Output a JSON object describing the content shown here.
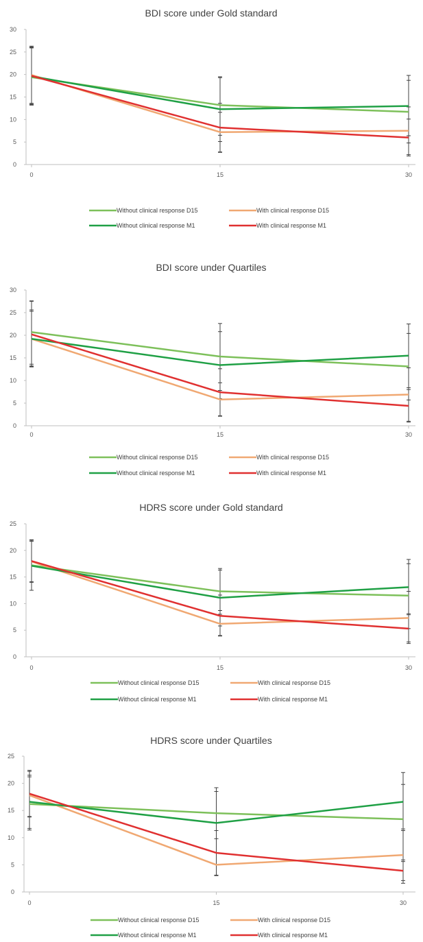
{
  "colors": {
    "without_d15": "#7dc05a",
    "with_d15": "#f0a872",
    "without_m1": "#1fa045",
    "with_m1": "#e03030",
    "axis": "#bfbfbf",
    "error_bar": "#404040"
  },
  "chart_data": [
    {
      "type": "line",
      "title": "BDI score under Gold standard",
      "x": [
        0,
        15,
        30
      ],
      "x_ticks": [
        "0",
        "15",
        "30"
      ],
      "y_ticks": [
        "0",
        "5",
        "10",
        "15",
        "20",
        "25",
        "30"
      ],
      "ylim": [
        0,
        30
      ],
      "legend_position": "bottom",
      "grid": false,
      "series": [
        {
          "name": "Without clinical response D15",
          "color_key": "without_d15",
          "values": [
            19.4,
            13.2,
            11.7
          ],
          "err_low": [
            13.4,
            6.5,
            4.8
          ],
          "err_high": [
            25.9,
            19.3,
            18.7
          ]
        },
        {
          "name": "With clinical response D15",
          "color_key": "with_d15",
          "values": [
            19.9,
            7.2,
            7.5
          ],
          "err_low": [
            13.6,
            2.8,
            2.2
          ],
          "err_high": [
            26.3,
            11.6,
            12.8
          ]
        },
        {
          "name": "Without clinical response M1",
          "color_key": "without_m1",
          "values": [
            19.6,
            12.3,
            13.0
          ],
          "err_low": [
            13.2,
            5.1,
            6.4
          ],
          "err_high": [
            26.0,
            19.5,
            19.8
          ]
        },
        {
          "name": "With clinical response M1",
          "color_key": "with_m1",
          "values": [
            19.7,
            8.2,
            6.0
          ],
          "err_low": [
            13.3,
            2.7,
            1.9
          ],
          "err_high": [
            26.1,
            13.6,
            10.1
          ]
        }
      ]
    },
    {
      "type": "line",
      "title": "BDI score under Quartiles",
      "x": [
        0,
        15,
        30
      ],
      "x_ticks": [
        "0",
        "15",
        "30"
      ],
      "y_ticks": [
        "0",
        "5",
        "10",
        "15",
        "20",
        "25",
        "30"
      ],
      "ylim": [
        0,
        30
      ],
      "legend_position": "bottom",
      "grid": false,
      "series": [
        {
          "name": "Without clinical response D15",
          "color_key": "without_d15",
          "values": [
            20.7,
            15.3,
            13.1
          ],
          "err_low": [
            13.6,
            7.8,
            5.7
          ],
          "err_high": [
            27.6,
            22.6,
            20.4
          ]
        },
        {
          "name": "With clinical response D15",
          "color_key": "with_d15",
          "values": [
            19.2,
            5.8,
            6.9
          ],
          "err_low": [
            13.0,
            2.1,
            1.0
          ],
          "err_high": [
            25.6,
            9.5,
            12.8
          ]
        },
        {
          "name": "Without clinical response M1",
          "color_key": "without_m1",
          "values": [
            19.2,
            13.4,
            15.5
          ],
          "err_low": [
            13.1,
            6.0,
            8.4
          ],
          "err_high": [
            25.3,
            20.8,
            22.5
          ]
        },
        {
          "name": "With clinical response M1",
          "color_key": "with_m1",
          "values": [
            20.2,
            7.4,
            4.4
          ],
          "err_low": [
            13.2,
            2.2,
            0.8
          ],
          "err_high": [
            27.5,
            12.6,
            8.0
          ]
        }
      ]
    },
    {
      "type": "line",
      "title": "HDRS score under Gold standard",
      "x": [
        0,
        15,
        30
      ],
      "x_ticks": [
        "0",
        "15",
        "30"
      ],
      "y_ticks": [
        "0",
        "5",
        "10",
        "15",
        "20",
        "25"
      ],
      "ylim": [
        0,
        25
      ],
      "legend_position": "bottom",
      "grid": false,
      "series": [
        {
          "name": "Without clinical response D15",
          "color_key": "without_d15",
          "values": [
            17.2,
            12.3,
            11.5
          ],
          "err_low": [
            12.5,
            8.0,
            5.3
          ],
          "err_high": [
            21.7,
            16.6,
            17.5
          ]
        },
        {
          "name": "With clinical response D15",
          "color_key": "with_d15",
          "values": [
            17.9,
            6.2,
            7.3
          ],
          "err_low": [
            14.0,
            4.0,
            2.8
          ],
          "err_high": [
            21.9,
            8.7,
            12.3
          ]
        },
        {
          "name": "Without clinical response M1",
          "color_key": "without_m1",
          "values": [
            17.1,
            11.1,
            13.1
          ],
          "err_low": [
            12.5,
            5.8,
            7.9
          ],
          "err_high": [
            21.9,
            16.3,
            18.3
          ]
        },
        {
          "name": "With clinical response M1",
          "color_key": "with_m1",
          "values": [
            18.0,
            7.7,
            5.3
          ],
          "err_low": [
            14.1,
            3.9,
            2.5
          ],
          "err_high": [
            22.0,
            11.6,
            8.1
          ]
        }
      ]
    },
    {
      "type": "line",
      "title": "HDRS score under Quartiles",
      "x": [
        0,
        15,
        30
      ],
      "x_ticks": [
        "0",
        "15",
        "30"
      ],
      "y_ticks": [
        "0",
        "5",
        "10",
        "15",
        "20",
        "25"
      ],
      "ylim": [
        0,
        25
      ],
      "legend_position": "bottom",
      "grid": false,
      "series": [
        {
          "name": "Without clinical response D15",
          "color_key": "without_d15",
          "values": [
            16.2,
            14.5,
            13.4
          ],
          "err_low": [
            11.4,
            9.8,
            5.6
          ],
          "err_high": [
            21.2,
            19.2,
            19.8
          ]
        },
        {
          "name": "With clinical response D15",
          "color_key": "with_d15",
          "values": [
            17.8,
            5.0,
            6.8
          ],
          "err_low": [
            13.8,
            3.0,
            1.6
          ],
          "err_high": [
            22.2,
            7.2,
            11.6
          ]
        },
        {
          "name": "Without clinical response M1",
          "color_key": "without_m1",
          "values": [
            16.6,
            12.7,
            16.6
          ],
          "err_low": [
            11.7,
            7.2,
            11.3
          ],
          "err_high": [
            21.5,
            18.5,
            22.0
          ]
        },
        {
          "name": "With clinical response M1",
          "color_key": "with_m1",
          "values": [
            18.1,
            7.2,
            3.9
          ],
          "err_low": [
            13.9,
            3.1,
            2.1
          ],
          "err_high": [
            22.4,
            11.3,
            5.9
          ]
        }
      ]
    }
  ]
}
